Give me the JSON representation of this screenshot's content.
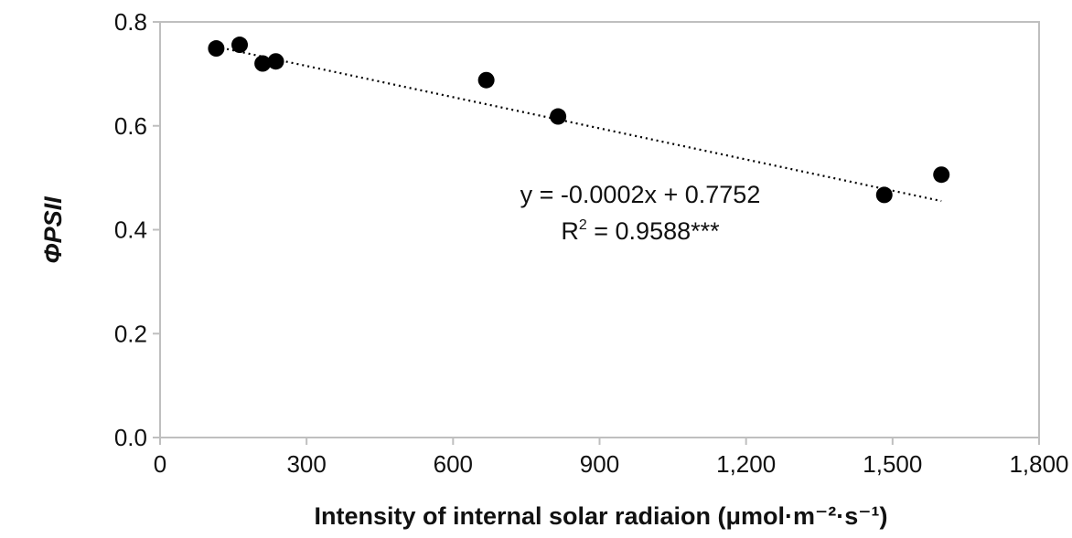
{
  "chart_data": {
    "type": "scatter",
    "title": "",
    "xlabel": "Intensity of internal solar radiaion (μmol·m⁻²·s⁻¹)",
    "ylabel": "ΦPSII",
    "xlim": [
      0,
      1800
    ],
    "ylim": [
      0,
      0.8
    ],
    "grid": false,
    "x_ticks": [
      0,
      300,
      600,
      900,
      1200,
      1500,
      1800
    ],
    "x_tick_labels": [
      "0",
      "300",
      "600",
      "900",
      "1,200",
      "1,500",
      "1,800"
    ],
    "y_ticks": [
      0,
      0.2,
      0.4,
      0.6,
      0.8
    ],
    "y_tick_labels": [
      "0.0",
      "0.2",
      "0.4",
      "0.6",
      "0.8"
    ],
    "series": [
      {
        "name": "ΦPSII",
        "color": "#000000",
        "points": [
          {
            "x": 115,
            "y": 0.749
          },
          {
            "x": 163,
            "y": 0.756
          },
          {
            "x": 210,
            "y": 0.72
          },
          {
            "x": 237,
            "y": 0.724
          },
          {
            "x": 668,
            "y": 0.688
          },
          {
            "x": 815,
            "y": 0.618
          },
          {
            "x": 1483,
            "y": 0.467
          },
          {
            "x": 1600,
            "y": 0.506
          }
        ]
      }
    ],
    "trendline": {
      "style": "dotted",
      "color": "#000000",
      "slope": -0.0002,
      "intercept": 0.7752,
      "x_range": [
        115,
        1600
      ]
    },
    "annotations": {
      "equation": "y = -0.0002x + 0.7752",
      "r2_prefix": "R",
      "r2_sup": "2",
      "r2_value": " = 0.9588***"
    },
    "axis_color": "#bfbfbf"
  }
}
